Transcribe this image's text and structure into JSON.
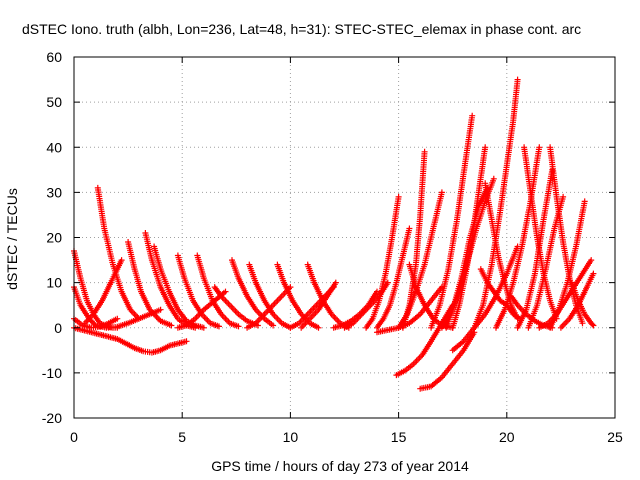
{
  "chart_data": {
    "type": "scatter",
    "title": "dSTEC Iono. truth (albh, Lon=236, Lat=48, h=31): STEC-STEC_elemax in phase cont. arc",
    "xlabel": "GPS time / hours of day 273 of year 2014",
    "ylabel": "dSTEC  / TECUs",
    "xlim": [
      0,
      25
    ],
    "ylim": [
      -20,
      60
    ],
    "x_ticks": [
      0,
      5,
      10,
      15,
      20,
      25
    ],
    "y_ticks": [
      -20,
      -10,
      0,
      10,
      20,
      30,
      40,
      50,
      60
    ],
    "x_tick_labels": [
      "0",
      "5",
      "10",
      "15",
      "20",
      "25"
    ],
    "y_tick_labels": [
      "-20",
      "-10",
      "0",
      "10",
      "20",
      "30",
      "40",
      "50",
      "60"
    ],
    "grid": true,
    "legend": "none",
    "marker": "plus",
    "color": "#ff0000",
    "series": [
      {
        "x": [
          0.0,
          0.3,
          0.6,
          0.9,
          1.2,
          1.5,
          1.8,
          2.0
        ],
        "y": [
          17,
          11,
          6,
          3,
          1,
          0.3,
          0,
          0
        ]
      },
      {
        "x": [
          0.0,
          0.3,
          0.7,
          1.0,
          1.5,
          2.0,
          2.5,
          3.0,
          3.5,
          4.0
        ],
        "y": [
          9,
          5,
          2,
          0.5,
          0,
          0.2,
          1,
          2,
          3,
          4
        ]
      },
      {
        "x": [
          0.0,
          0.4,
          0.8,
          1.2,
          1.6,
          2.0
        ],
        "y": [
          2,
          0.5,
          0,
          0.2,
          1,
          2
        ]
      },
      {
        "x": [
          0.0,
          0.4,
          0.8,
          1.2,
          1.6,
          2.0,
          2.4,
          2.8,
          3.2,
          3.6,
          4.0,
          4.4,
          4.8,
          5.2
        ],
        "y": [
          0,
          -0.5,
          -1,
          -1.5,
          -2,
          -2.5,
          -3.5,
          -4.5,
          -5.2,
          -5.5,
          -5,
          -4,
          -3.5,
          -3
        ]
      },
      {
        "x": [
          1.1,
          1.4,
          1.8,
          2.2,
          2.6,
          3.0
        ],
        "y": [
          31,
          22,
          14,
          8,
          4,
          2
        ]
      },
      {
        "x": [
          0.5,
          0.9,
          1.3,
          1.7,
          2.0,
          2.2
        ],
        "y": [
          1,
          3,
          6,
          10,
          13,
          15
        ]
      },
      {
        "x": [
          2.5,
          2.8,
          3.1,
          3.5,
          4.0,
          4.5
        ],
        "y": [
          19,
          13,
          8,
          4,
          1.5,
          0.5
        ]
      },
      {
        "x": [
          3.3,
          3.6,
          4.0,
          4.4,
          4.8,
          5.2,
          5.6
        ],
        "y": [
          21,
          15,
          9,
          5,
          2,
          0.5,
          0
        ]
      },
      {
        "x": [
          3.7,
          4.0,
          4.4,
          4.8,
          5.2,
          5.6,
          6.0
        ],
        "y": [
          18,
          13,
          8,
          4,
          1.5,
          0.5,
          0
        ]
      },
      {
        "x": [
          4.8,
          5.1,
          5.5,
          5.9,
          6.3,
          6.7
        ],
        "y": [
          16,
          11,
          6,
          3,
          1,
          0.3
        ]
      },
      {
        "x": [
          5.7,
          6.0,
          6.4,
          6.8,
          7.2,
          7.6
        ],
        "y": [
          16,
          11,
          6,
          3,
          1,
          0.3
        ]
      },
      {
        "x": [
          4.8,
          5.2,
          5.6,
          6.0,
          6.5,
          7.0
        ],
        "y": [
          0,
          0.5,
          2,
          4,
          6,
          8
        ]
      },
      {
        "x": [
          6.5,
          6.8,
          7.2,
          7.6,
          8.0,
          8.5
        ],
        "y": [
          9,
          7,
          5,
          3,
          1.5,
          0.5
        ]
      },
      {
        "x": [
          7.3,
          7.6,
          8.0,
          8.4,
          8.8,
          9.2
        ],
        "y": [
          15,
          11,
          7,
          4,
          2,
          0.5
        ]
      },
      {
        "x": [
          8.1,
          8.4,
          8.8,
          9.2,
          9.6,
          10.0
        ],
        "y": [
          14,
          10,
          6,
          3,
          1,
          0
        ]
      },
      {
        "x": [
          9.4,
          9.7,
          10.1,
          10.5,
          10.9,
          11.3
        ],
        "y": [
          14,
          10,
          6,
          3,
          1,
          0
        ]
      },
      {
        "x": [
          8.0,
          8.4,
          8.8,
          9.2,
          9.6,
          10.0
        ],
        "y": [
          0,
          1,
          3,
          5,
          7,
          9
        ]
      },
      {
        "x": [
          10.8,
          11.1,
          11.5,
          11.9,
          12.3,
          12.7
        ],
        "y": [
          14,
          10,
          6,
          3,
          1,
          0
        ]
      },
      {
        "x": [
          10.0,
          10.4,
          10.8,
          11.2,
          11.6,
          12.0
        ],
        "y": [
          0,
          1,
          3,
          5,
          7,
          9
        ]
      },
      {
        "x": [
          10.5,
          10.9,
          11.3,
          11.7,
          12.1
        ],
        "y": [
          0,
          2,
          4,
          7,
          10
        ]
      },
      {
        "x": [
          12.0,
          12.4,
          12.8,
          13.2,
          13.6,
          14.0
        ],
        "y": [
          0,
          0.5,
          1.5,
          3,
          5,
          8
        ]
      },
      {
        "x": [
          12.5,
          12.9,
          13.3,
          13.7,
          14.1,
          14.5
        ],
        "y": [
          0,
          1,
          3,
          5,
          7,
          10
        ]
      },
      {
        "x": [
          13.5,
          13.8,
          14.1,
          14.4,
          14.7,
          15.0
        ],
        "y": [
          0,
          2,
          6,
          12,
          20,
          29
        ]
      },
      {
        "x": [
          14.0,
          14.3,
          14.6,
          14.9,
          15.2,
          15.5
        ],
        "y": [
          0,
          2,
          5,
          10,
          16,
          22
        ]
      },
      {
        "x": [
          14.0,
          14.5,
          15.0,
          15.5,
          16.0,
          16.5,
          17.0
        ],
        "y": [
          -1,
          -0.5,
          0,
          1,
          3,
          6,
          9
        ]
      },
      {
        "x": [
          15.0,
          15.4,
          15.8,
          16.2,
          16.6,
          17.0
        ],
        "y": [
          0,
          3,
          8,
          14,
          22,
          30
        ]
      },
      {
        "x": [
          15.2,
          15.5,
          15.8,
          16.0,
          16.2
        ],
        "y": [
          0,
          5,
          14,
          25,
          39
        ]
      },
      {
        "x": [
          14.9,
          15.3,
          15.7,
          16.1,
          16.5,
          17.0,
          17.5
        ],
        "y": [
          -10.5,
          -9.5,
          -8,
          -6,
          -3,
          1,
          5
        ]
      },
      {
        "x": [
          16.0,
          16.5,
          17.0,
          17.5,
          18.0,
          18.5
        ],
        "y": [
          -13.5,
          -13,
          -11,
          -8,
          -5,
          -1
        ]
      },
      {
        "x": [
          15.5,
          15.8,
          16.2,
          16.6,
          17.0,
          17.5
        ],
        "y": [
          14,
          9,
          5,
          2,
          0.5,
          0
        ]
      },
      {
        "x": [
          16.5,
          16.9,
          17.3,
          17.7,
          18.0,
          18.4
        ],
        "y": [
          0,
          5,
          13,
          24,
          34,
          47
        ]
      },
      {
        "x": [
          17.2,
          17.5,
          17.9,
          18.3,
          18.7,
          19.1
        ],
        "y": [
          0,
          4,
          11,
          20,
          27,
          31
        ]
      },
      {
        "x": [
          17.0,
          17.4,
          17.8,
          18.2,
          18.6,
          19.0,
          19.4
        ],
        "y": [
          0,
          3,
          8,
          15,
          22,
          28,
          33
        ]
      },
      {
        "x": [
          17.5,
          17.8,
          18.1,
          18.4,
          18.7,
          19.0
        ],
        "y": [
          0,
          5,
          12,
          20,
          30,
          40
        ]
      },
      {
        "x": [
          17.5,
          18.0,
          18.5,
          19.0,
          19.5,
          20.0,
          20.5
        ],
        "y": [
          -5,
          -3,
          0,
          3,
          7,
          12,
          18
        ]
      },
      {
        "x": [
          18.5,
          18.9,
          19.3,
          19.7,
          20.0,
          20.3,
          20.5
        ],
        "y": [
          0,
          5,
          14,
          26,
          36,
          46,
          55
        ]
      },
      {
        "x": [
          19.0,
          19.3,
          19.6,
          19.9,
          20.2,
          20.5
        ],
        "y": [
          32,
          24,
          16,
          10,
          5,
          2
        ]
      },
      {
        "x": [
          18.8,
          19.1,
          19.4,
          19.7,
          20.0,
          20.3,
          20.6
        ],
        "y": [
          13,
          10,
          8,
          6,
          5,
          3,
          2
        ]
      },
      {
        "x": [
          19.5,
          19.9,
          20.3,
          20.7,
          21.1,
          21.5
        ],
        "y": [
          0,
          4,
          10,
          18,
          28,
          40
        ]
      },
      {
        "x": [
          20.8,
          21.1,
          21.4,
          21.7,
          22.0,
          22.3
        ],
        "y": [
          40,
          30,
          20,
          12,
          6,
          2
        ]
      },
      {
        "x": [
          20.2,
          20.5,
          20.9,
          21.3,
          21.7,
          22.1
        ],
        "y": [
          7,
          5,
          3,
          1.5,
          0.5,
          0
        ]
      },
      {
        "x": [
          20.5,
          20.9,
          21.3,
          21.7,
          22.1
        ],
        "y": [
          0,
          4,
          12,
          24,
          35
        ]
      },
      {
        "x": [
          21.0,
          21.4,
          21.8,
          22.2,
          22.6
        ],
        "y": [
          0,
          5,
          13,
          22,
          29
        ]
      },
      {
        "x": [
          22.0,
          22.3,
          22.6,
          22.9,
          23.2,
          23.5
        ],
        "y": [
          40,
          29,
          19,
          11,
          5,
          1
        ]
      },
      {
        "x": [
          21.5,
          21.9,
          22.3,
          22.7,
          23.1,
          23.5,
          23.9
        ],
        "y": [
          0,
          1,
          3,
          6,
          9,
          12,
          15
        ]
      },
      {
        "x": [
          22.0,
          22.4,
          22.8,
          23.2,
          23.6
        ],
        "y": [
          0,
          4,
          10,
          18,
          28
        ]
      },
      {
        "x": [
          23.0,
          23.3,
          23.6,
          23.9,
          24.0
        ],
        "y": [
          10,
          6,
          3,
          1,
          0.5
        ]
      },
      {
        "x": [
          22.5,
          22.9,
          23.3,
          23.7,
          24.0
        ],
        "y": [
          0,
          2,
          5,
          9,
          12
        ]
      }
    ]
  }
}
